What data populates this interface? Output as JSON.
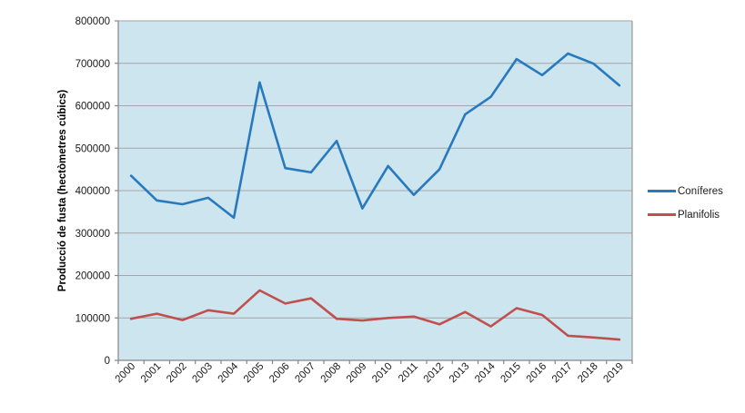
{
  "figure": {
    "background": "#ffffff",
    "plot_background": "#cde5ef",
    "gridline_color": "#a6a6a6",
    "axis_color": "#868686",
    "text_color": "#1a1a1a"
  },
  "chart_data": {
    "type": "line",
    "title": "",
    "xlabel": "",
    "ylabel": "Producció de fusta (hectòmetres cúbics)",
    "ylim": [
      0,
      800000
    ],
    "yticks": [
      0,
      100000,
      200000,
      300000,
      400000,
      500000,
      600000,
      700000,
      800000
    ],
    "grid": true,
    "legend_position": "right",
    "x_label_rotation_deg": 45,
    "categories": [
      "2000",
      "2001",
      "2002",
      "2003",
      "2004",
      "2005",
      "2006",
      "2007",
      "2008",
      "2009",
      "2010",
      "2011",
      "2012",
      "2013",
      "2014",
      "2015",
      "2016",
      "2017",
      "2018",
      "2019"
    ],
    "series": [
      {
        "name": "Coníferes",
        "color": "#2879be",
        "values": [
          435000,
          377000,
          368000,
          383000,
          336000,
          655000,
          453000,
          443000,
          517000,
          358000,
          458000,
          390000,
          450000,
          580000,
          621000,
          710000,
          672000,
          723000,
          699000,
          648000
        ]
      },
      {
        "name": "Planifolis",
        "color": "#c0504d",
        "values": [
          98000,
          110000,
          95000,
          118000,
          110000,
          165000,
          134000,
          146000,
          98000,
          94000,
          100000,
          103000,
          85000,
          114000,
          80000,
          123000,
          107000,
          58000,
          54000,
          49000
        ]
      }
    ]
  },
  "legend": {
    "items": [
      {
        "label": "Coníferes"
      },
      {
        "label": "Planifolis"
      }
    ]
  }
}
